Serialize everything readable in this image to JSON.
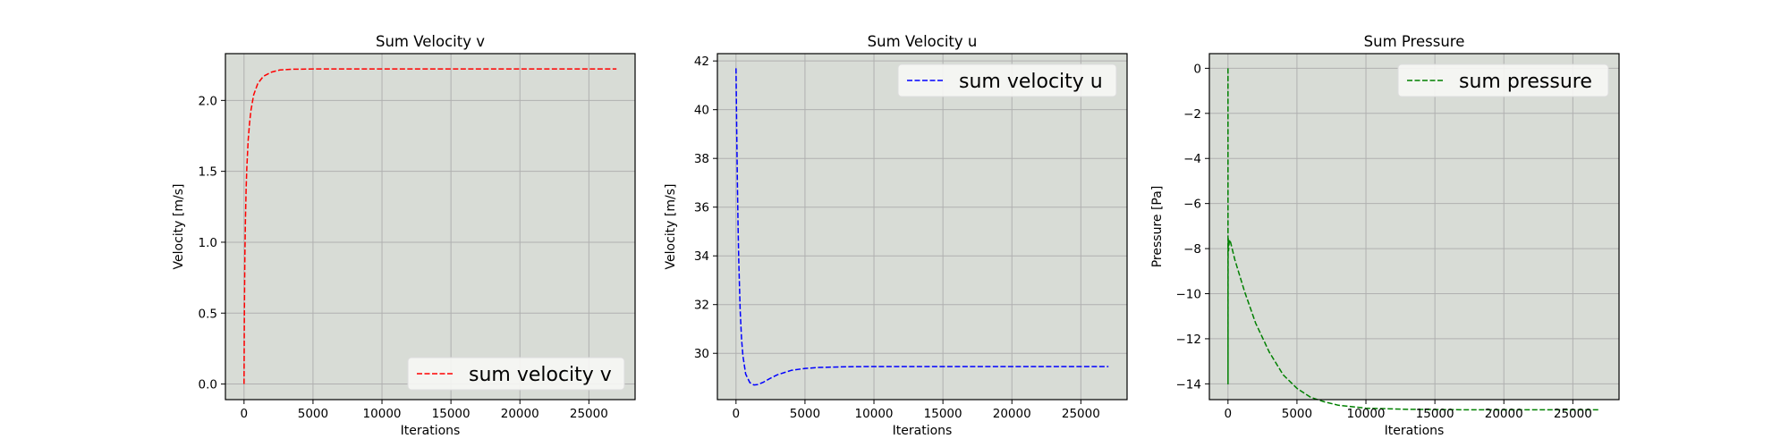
{
  "figure": {
    "background": "#ffffff",
    "axes_facecolor": "#d8dcd6",
    "grid_color": "#b0b0b0"
  },
  "chart_data": [
    {
      "type": "line",
      "title": "Sum Velocity v",
      "xlabel": "Iterations",
      "ylabel": "Velocity [m/s]",
      "xlim": [
        -1350,
        28350
      ],
      "ylim": [
        -0.11,
        2.33
      ],
      "xticks": [
        0,
        5000,
        10000,
        15000,
        20000,
        25000
      ],
      "xtick_labels": [
        "0",
        "5000",
        "10000",
        "15000",
        "20000",
        "25000"
      ],
      "yticks": [
        0.0,
        0.5,
        1.0,
        1.5,
        2.0
      ],
      "ytick_labels": [
        "0.0",
        "0.5",
        "1.0",
        "1.5",
        "2.0"
      ],
      "grid": true,
      "legend_position": "lower-right",
      "series": [
        {
          "name": "sum velocity v",
          "color": "#ff0000",
          "linestyle": "dashed",
          "x": [
            0,
            25,
            60,
            100,
            150,
            200,
            300,
            400,
            500,
            700,
            1000,
            1400,
            2000,
            2600,
            3500,
            5000,
            7000,
            10000,
            15000,
            20000,
            27000
          ],
          "y": [
            0.0,
            0.5,
            0.9,
            1.15,
            1.37,
            1.52,
            1.72,
            1.84,
            1.93,
            2.04,
            2.12,
            2.17,
            2.2,
            2.215,
            2.22,
            2.222,
            2.222,
            2.222,
            2.222,
            2.222,
            2.222
          ]
        }
      ]
    },
    {
      "type": "line",
      "title": "Sum Velocity u",
      "xlabel": "Iterations",
      "ylabel": "Velocity [m/s]",
      "xlim": [
        -1350,
        28350
      ],
      "ylim": [
        28.1,
        42.3
      ],
      "xticks": [
        0,
        5000,
        10000,
        15000,
        20000,
        25000
      ],
      "xtick_labels": [
        "0",
        "5000",
        "10000",
        "15000",
        "20000",
        "25000"
      ],
      "yticks": [
        30,
        32,
        34,
        36,
        38,
        40,
        42
      ],
      "ytick_labels": [
        "30",
        "32",
        "34",
        "36",
        "38",
        "40",
        "42"
      ],
      "grid": true,
      "legend_position": "upper-right",
      "series": [
        {
          "name": "sum velocity u",
          "color": "#0000ff",
          "linestyle": "dashed",
          "x": [
            0,
            50,
            100,
            150,
            200,
            300,
            400,
            500,
            700,
            1000,
            1300,
            1600,
            2000,
            2500,
            3000,
            4000,
            5000,
            6000,
            8000,
            10000,
            15000,
            20000,
            27000
          ],
          "y": [
            41.7,
            39.2,
            37.0,
            35.2,
            33.8,
            31.8,
            30.6,
            29.9,
            29.15,
            28.8,
            28.7,
            28.72,
            28.82,
            28.98,
            29.12,
            29.3,
            29.38,
            29.42,
            29.45,
            29.46,
            29.46,
            29.46,
            29.46
          ]
        }
      ]
    },
    {
      "type": "line",
      "title": "Sum Pressure",
      "xlabel": "Iterations",
      "ylabel": "Pressure [Pa]",
      "xlim": [
        -1350,
        28350
      ],
      "ylim": [
        -14.7,
        0.65
      ],
      "xticks": [
        0,
        5000,
        10000,
        15000,
        20000,
        25000
      ],
      "xtick_labels": [
        "0",
        "5000",
        "10000",
        "15000",
        "20000",
        "25000"
      ],
      "yticks": [
        0,
        -2,
        -4,
        -6,
        -8,
        -10,
        -12,
        -14
      ],
      "ytick_labels": [
        "0",
        "−2",
        "−4",
        "−6",
        "−8",
        "−10",
        "−12",
        "−14"
      ],
      "grid": true,
      "legend_position": "upper-right",
      "series": [
        {
          "name": "sum pressure",
          "color": "#008000",
          "linestyle": "dashed",
          "x": [
            0,
            2,
            5,
            10,
            20,
            40,
            80,
            120,
            200,
            300,
            500,
            800,
            1200,
            1600,
            2000,
            3000,
            4000,
            5000,
            6000,
            7000,
            8000,
            10000,
            13000,
            17000,
            22000,
            27000
          ],
          "y": [
            0,
            -14.0,
            -10.0,
            -7.9,
            -7.55,
            -8.1,
            -7.75,
            -7.6,
            -7.75,
            -8.0,
            -8.5,
            -9.1,
            -9.9,
            -10.6,
            -11.3,
            -12.6,
            -13.6,
            -14.2,
            -14.6,
            -14.8,
            -14.95,
            -15.08,
            -15.13,
            -15.15,
            -15.15,
            -15.15
          ]
        }
      ]
    }
  ]
}
